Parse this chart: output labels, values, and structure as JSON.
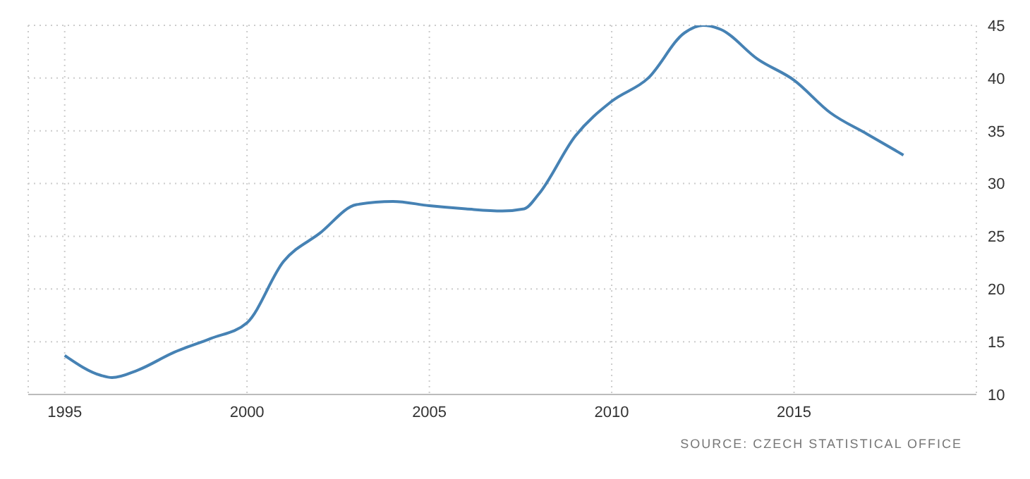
{
  "chart_data": {
    "type": "line",
    "x": [
      1995,
      1996,
      1996.3,
      1997,
      1998,
      1999,
      2000,
      2001,
      2002,
      2003,
      2004,
      2005,
      2006,
      2007,
      2007.6,
      2008,
      2009,
      2010,
      2011,
      2012,
      2012.5,
      2013,
      2014,
      2015,
      2016,
      2017,
      2018
    ],
    "series": [
      {
        "color": "#4682b4",
        "values": [
          13.7,
          11.8,
          11.6,
          12.3,
          14.0,
          15.3,
          16.8,
          22.6,
          25.3,
          28.0,
          28.3,
          27.9,
          27.6,
          27.4,
          27.6,
          29.0,
          34.5,
          37.8,
          40.0,
          44.3,
          45.0,
          44.6,
          41.8,
          39.8,
          36.7,
          34.7,
          32.7
        ]
      }
    ],
    "xlim": [
      1994,
      2020
    ],
    "xticks": [
      1995,
      2000,
      2005,
      2010,
      2015
    ],
    "ylim": [
      10,
      45
    ],
    "yticks": [
      10,
      15,
      20,
      25,
      30,
      35,
      40,
      45
    ],
    "grid": true,
    "marker": "none",
    "line_style": "solid",
    "annotations": [
      "SOURCE: CZECH STATISTICAL OFFICE"
    ]
  }
}
